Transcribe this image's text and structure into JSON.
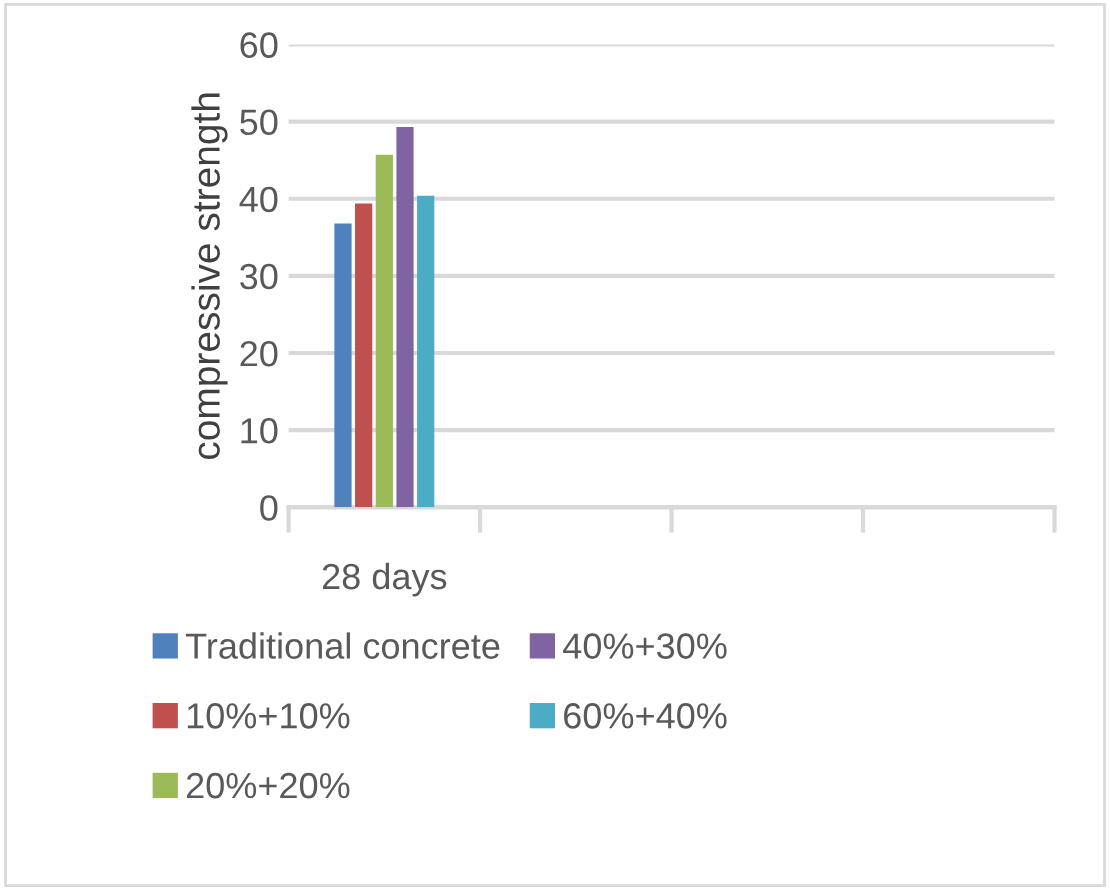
{
  "chart_data": {
    "type": "bar",
    "ylabel": "compressive strength",
    "categories": [
      "28 days",
      null,
      null,
      null
    ],
    "series": [
      {
        "name": "Traditional concrete",
        "color": "#4f81bd",
        "values": [
          36.8,
          null,
          null,
          null
        ]
      },
      {
        "name": "10%+10%",
        "color": "#c0504d",
        "values": [
          39.4,
          null,
          null,
          null
        ]
      },
      {
        "name": "20%+20%",
        "color": "#9bbb59",
        "values": [
          45.7,
          null,
          null,
          null
        ]
      },
      {
        "name": "40%+30%",
        "color": "#8064a2",
        "values": [
          49.3,
          null,
          null,
          null
        ]
      },
      {
        "name": "60%+40%",
        "color": "#4bacc6",
        "values": [
          40.4,
          null,
          null,
          null
        ]
      }
    ],
    "ylim": [
      0,
      60
    ],
    "yticks": [
      0,
      10,
      20,
      30,
      40,
      50,
      60
    ],
    "grid": "y",
    "legend": "bottom"
  }
}
